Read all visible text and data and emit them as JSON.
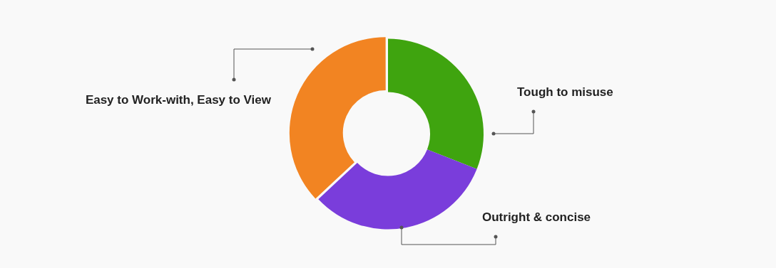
{
  "chart_data": {
    "type": "donut",
    "categories": [
      "Tough to misuse",
      "Outright & concise",
      "Easy to Work-with, Easy to View"
    ],
    "values": [
      31,
      32,
      37
    ],
    "colors": [
      "#3fa40f",
      "#7a3ddb",
      "#f28422"
    ],
    "legend": false
  }
}
